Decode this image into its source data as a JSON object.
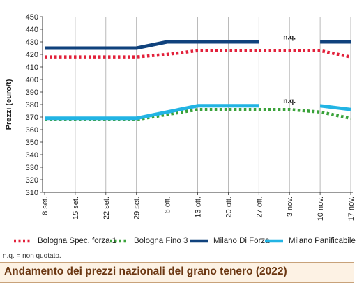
{
  "chart_data": {
    "type": "line",
    "categories": [
      "8 set.",
      "15 set.",
      "22 set.",
      "29 set.",
      "6 ott.",
      "13 ott.",
      "20 ott.",
      "27 ott.",
      "3 nov.",
      "10 nov.",
      "17 nov."
    ],
    "ylabel": "Prezzi (euro/t)",
    "ylim": [
      310,
      450
    ],
    "yticks": [
      310,
      320,
      330,
      340,
      350,
      360,
      370,
      380,
      390,
      400,
      410,
      420,
      430,
      440,
      450
    ],
    "grid": "vertical",
    "legend_position": "bottom",
    "series": [
      {
        "name": "Bologna Spec. forza 1",
        "color": "#e2203a",
        "dash": "dotted",
        "values": [
          418,
          418,
          418,
          418,
          420,
          423,
          423,
          423,
          423,
          423,
          418
        ]
      },
      {
        "name": "Bologna Fino 3",
        "color": "#3aa23a",
        "dash": "dotted",
        "values": [
          368,
          368,
          368,
          368,
          372,
          376,
          376,
          376,
          376,
          374,
          369
        ]
      },
      {
        "name": "Milano Di Forza",
        "color": "#10427d",
        "dash": "solid",
        "values": [
          425,
          425,
          425,
          425,
          430,
          430,
          430,
          430,
          null,
          430,
          430
        ]
      },
      {
        "name": "Milano Panificabile",
        "color": "#22b4e4",
        "dash": "solid",
        "values": [
          369,
          369,
          369,
          369,
          374,
          379,
          379,
          379,
          null,
          379,
          376
        ]
      }
    ],
    "annotations": [
      {
        "text": "n.q.",
        "category": "3 nov.",
        "value": 432
      },
      {
        "text": "n.q.",
        "category": "3 nov.",
        "value": 381
      }
    ]
  },
  "note": "n.q. = non quotato.",
  "footer_title": "Andamento dei prezzi nazionali del grano tenero (2022)"
}
